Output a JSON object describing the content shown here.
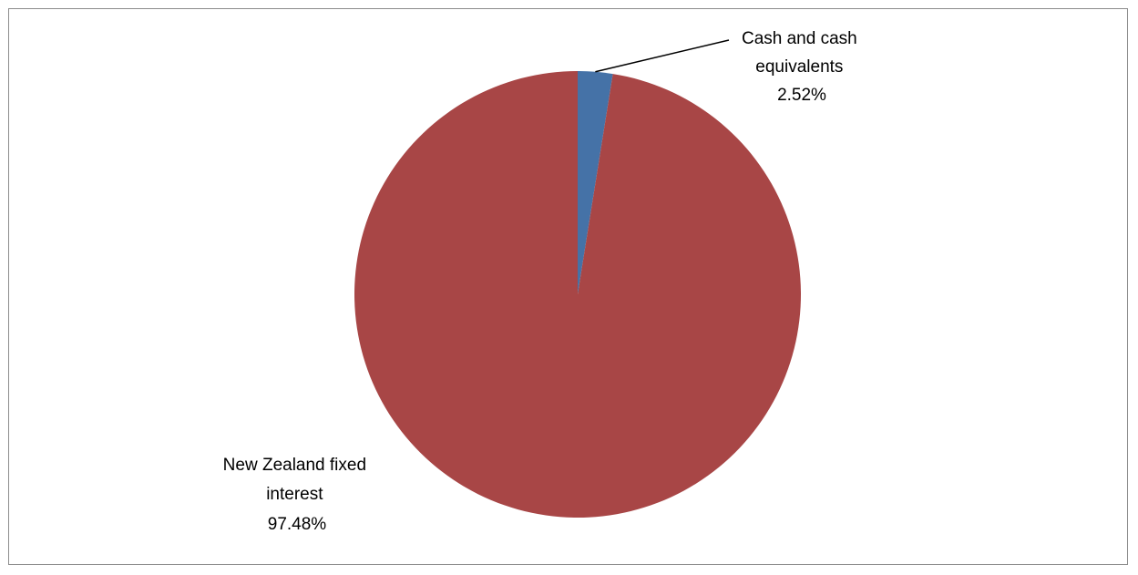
{
  "chart_data": {
    "type": "pie",
    "title": "",
    "legend": "none",
    "start_angle_deg": 0,
    "direction": "clockwise",
    "slices": [
      {
        "label_lines": [
          "Cash and cash",
          "equivalents"
        ],
        "value": 2.52,
        "percent_label": "2.52%",
        "color": "#4572A7"
      },
      {
        "label_lines": [
          "New Zealand fixed",
          "interest"
        ],
        "value": 97.48,
        "percent_label": "97.48%",
        "color": "#A84646"
      }
    ]
  }
}
